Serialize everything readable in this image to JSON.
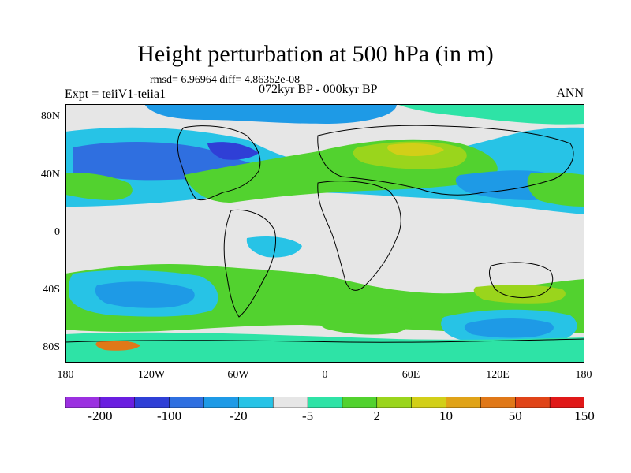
{
  "title": "Height perturbation at 500 hPa (in m)",
  "stats": "rmsd= 6.96964  diff= 4.86352e-08",
  "experiment": "Expt = teiiV1-teiia1",
  "period": "072kyr BP - 000kyr BP",
  "season": "ANN",
  "axes": {
    "lat_ticks": [
      "80N",
      "40N",
      "0",
      "40S",
      "80S"
    ],
    "lon_ticks": [
      "180",
      "120W",
      "60W",
      "0",
      "60E",
      "120E",
      "180"
    ]
  },
  "colorbar": {
    "colors": [
      "#9b30e0",
      "#6a1ee0",
      "#2f3fd6",
      "#2f6fe0",
      "#1e9ae6",
      "#27c3e6",
      "#e6e6e6",
      "#2ee3a6",
      "#52d22f",
      "#9ad51c",
      "#d2cf18",
      "#e0a318",
      "#e07818",
      "#e04418",
      "#e01818"
    ],
    "labels": [
      "-200",
      "-100",
      "-20",
      "-5",
      "2",
      "10",
      "50",
      "150"
    ]
  }
}
